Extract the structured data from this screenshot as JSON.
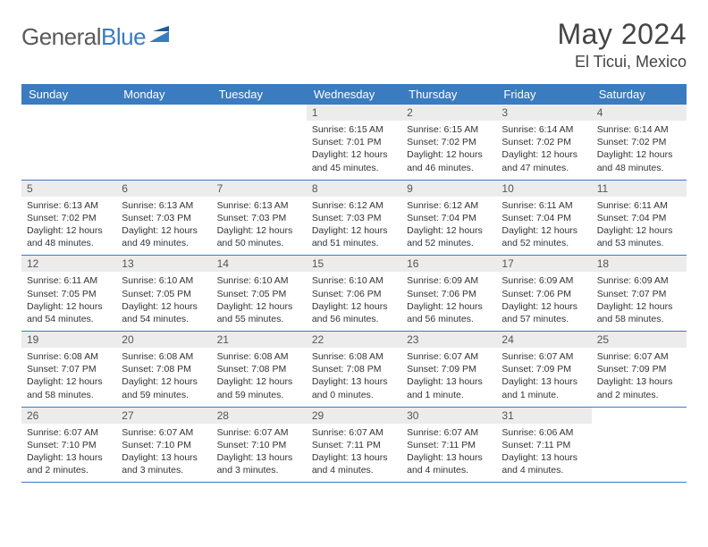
{
  "logo": {
    "text1": "General",
    "text2": "Blue"
  },
  "title": "May 2024",
  "location": "El Ticui, Mexico",
  "colors": {
    "header_blue": "#3b7bbf",
    "daynum_bg": "#ececec",
    "text": "#333333",
    "logo_grey": "#5a5a5a"
  },
  "day_headers": [
    "Sunday",
    "Monday",
    "Tuesday",
    "Wednesday",
    "Thursday",
    "Friday",
    "Saturday"
  ],
  "weeks": [
    [
      null,
      null,
      null,
      {
        "n": "1",
        "sunrise": "Sunrise: 6:15 AM",
        "sunset": "Sunset: 7:01 PM",
        "daylight": "Daylight: 12 hours and 45 minutes."
      },
      {
        "n": "2",
        "sunrise": "Sunrise: 6:15 AM",
        "sunset": "Sunset: 7:02 PM",
        "daylight": "Daylight: 12 hours and 46 minutes."
      },
      {
        "n": "3",
        "sunrise": "Sunrise: 6:14 AM",
        "sunset": "Sunset: 7:02 PM",
        "daylight": "Daylight: 12 hours and 47 minutes."
      },
      {
        "n": "4",
        "sunrise": "Sunrise: 6:14 AM",
        "sunset": "Sunset: 7:02 PM",
        "daylight": "Daylight: 12 hours and 48 minutes."
      }
    ],
    [
      {
        "n": "5",
        "sunrise": "Sunrise: 6:13 AM",
        "sunset": "Sunset: 7:02 PM",
        "daylight": "Daylight: 12 hours and 48 minutes."
      },
      {
        "n": "6",
        "sunrise": "Sunrise: 6:13 AM",
        "sunset": "Sunset: 7:03 PM",
        "daylight": "Daylight: 12 hours and 49 minutes."
      },
      {
        "n": "7",
        "sunrise": "Sunrise: 6:13 AM",
        "sunset": "Sunset: 7:03 PM",
        "daylight": "Daylight: 12 hours and 50 minutes."
      },
      {
        "n": "8",
        "sunrise": "Sunrise: 6:12 AM",
        "sunset": "Sunset: 7:03 PM",
        "daylight": "Daylight: 12 hours and 51 minutes."
      },
      {
        "n": "9",
        "sunrise": "Sunrise: 6:12 AM",
        "sunset": "Sunset: 7:04 PM",
        "daylight": "Daylight: 12 hours and 52 minutes."
      },
      {
        "n": "10",
        "sunrise": "Sunrise: 6:11 AM",
        "sunset": "Sunset: 7:04 PM",
        "daylight": "Daylight: 12 hours and 52 minutes."
      },
      {
        "n": "11",
        "sunrise": "Sunrise: 6:11 AM",
        "sunset": "Sunset: 7:04 PM",
        "daylight": "Daylight: 12 hours and 53 minutes."
      }
    ],
    [
      {
        "n": "12",
        "sunrise": "Sunrise: 6:11 AM",
        "sunset": "Sunset: 7:05 PM",
        "daylight": "Daylight: 12 hours and 54 minutes."
      },
      {
        "n": "13",
        "sunrise": "Sunrise: 6:10 AM",
        "sunset": "Sunset: 7:05 PM",
        "daylight": "Daylight: 12 hours and 54 minutes."
      },
      {
        "n": "14",
        "sunrise": "Sunrise: 6:10 AM",
        "sunset": "Sunset: 7:05 PM",
        "daylight": "Daylight: 12 hours and 55 minutes."
      },
      {
        "n": "15",
        "sunrise": "Sunrise: 6:10 AM",
        "sunset": "Sunset: 7:06 PM",
        "daylight": "Daylight: 12 hours and 56 minutes."
      },
      {
        "n": "16",
        "sunrise": "Sunrise: 6:09 AM",
        "sunset": "Sunset: 7:06 PM",
        "daylight": "Daylight: 12 hours and 56 minutes."
      },
      {
        "n": "17",
        "sunrise": "Sunrise: 6:09 AM",
        "sunset": "Sunset: 7:06 PM",
        "daylight": "Daylight: 12 hours and 57 minutes."
      },
      {
        "n": "18",
        "sunrise": "Sunrise: 6:09 AM",
        "sunset": "Sunset: 7:07 PM",
        "daylight": "Daylight: 12 hours and 58 minutes."
      }
    ],
    [
      {
        "n": "19",
        "sunrise": "Sunrise: 6:08 AM",
        "sunset": "Sunset: 7:07 PM",
        "daylight": "Daylight: 12 hours and 58 minutes."
      },
      {
        "n": "20",
        "sunrise": "Sunrise: 6:08 AM",
        "sunset": "Sunset: 7:08 PM",
        "daylight": "Daylight: 12 hours and 59 minutes."
      },
      {
        "n": "21",
        "sunrise": "Sunrise: 6:08 AM",
        "sunset": "Sunset: 7:08 PM",
        "daylight": "Daylight: 12 hours and 59 minutes."
      },
      {
        "n": "22",
        "sunrise": "Sunrise: 6:08 AM",
        "sunset": "Sunset: 7:08 PM",
        "daylight": "Daylight: 13 hours and 0 minutes."
      },
      {
        "n": "23",
        "sunrise": "Sunrise: 6:07 AM",
        "sunset": "Sunset: 7:09 PM",
        "daylight": "Daylight: 13 hours and 1 minute."
      },
      {
        "n": "24",
        "sunrise": "Sunrise: 6:07 AM",
        "sunset": "Sunset: 7:09 PM",
        "daylight": "Daylight: 13 hours and 1 minute."
      },
      {
        "n": "25",
        "sunrise": "Sunrise: 6:07 AM",
        "sunset": "Sunset: 7:09 PM",
        "daylight": "Daylight: 13 hours and 2 minutes."
      }
    ],
    [
      {
        "n": "26",
        "sunrise": "Sunrise: 6:07 AM",
        "sunset": "Sunset: 7:10 PM",
        "daylight": "Daylight: 13 hours and 2 minutes."
      },
      {
        "n": "27",
        "sunrise": "Sunrise: 6:07 AM",
        "sunset": "Sunset: 7:10 PM",
        "daylight": "Daylight: 13 hours and 3 minutes."
      },
      {
        "n": "28",
        "sunrise": "Sunrise: 6:07 AM",
        "sunset": "Sunset: 7:10 PM",
        "daylight": "Daylight: 13 hours and 3 minutes."
      },
      {
        "n": "29",
        "sunrise": "Sunrise: 6:07 AM",
        "sunset": "Sunset: 7:11 PM",
        "daylight": "Daylight: 13 hours and 4 minutes."
      },
      {
        "n": "30",
        "sunrise": "Sunrise: 6:07 AM",
        "sunset": "Sunset: 7:11 PM",
        "daylight": "Daylight: 13 hours and 4 minutes."
      },
      {
        "n": "31",
        "sunrise": "Sunrise: 6:06 AM",
        "sunset": "Sunset: 7:11 PM",
        "daylight": "Daylight: 13 hours and 4 minutes."
      },
      null
    ]
  ]
}
